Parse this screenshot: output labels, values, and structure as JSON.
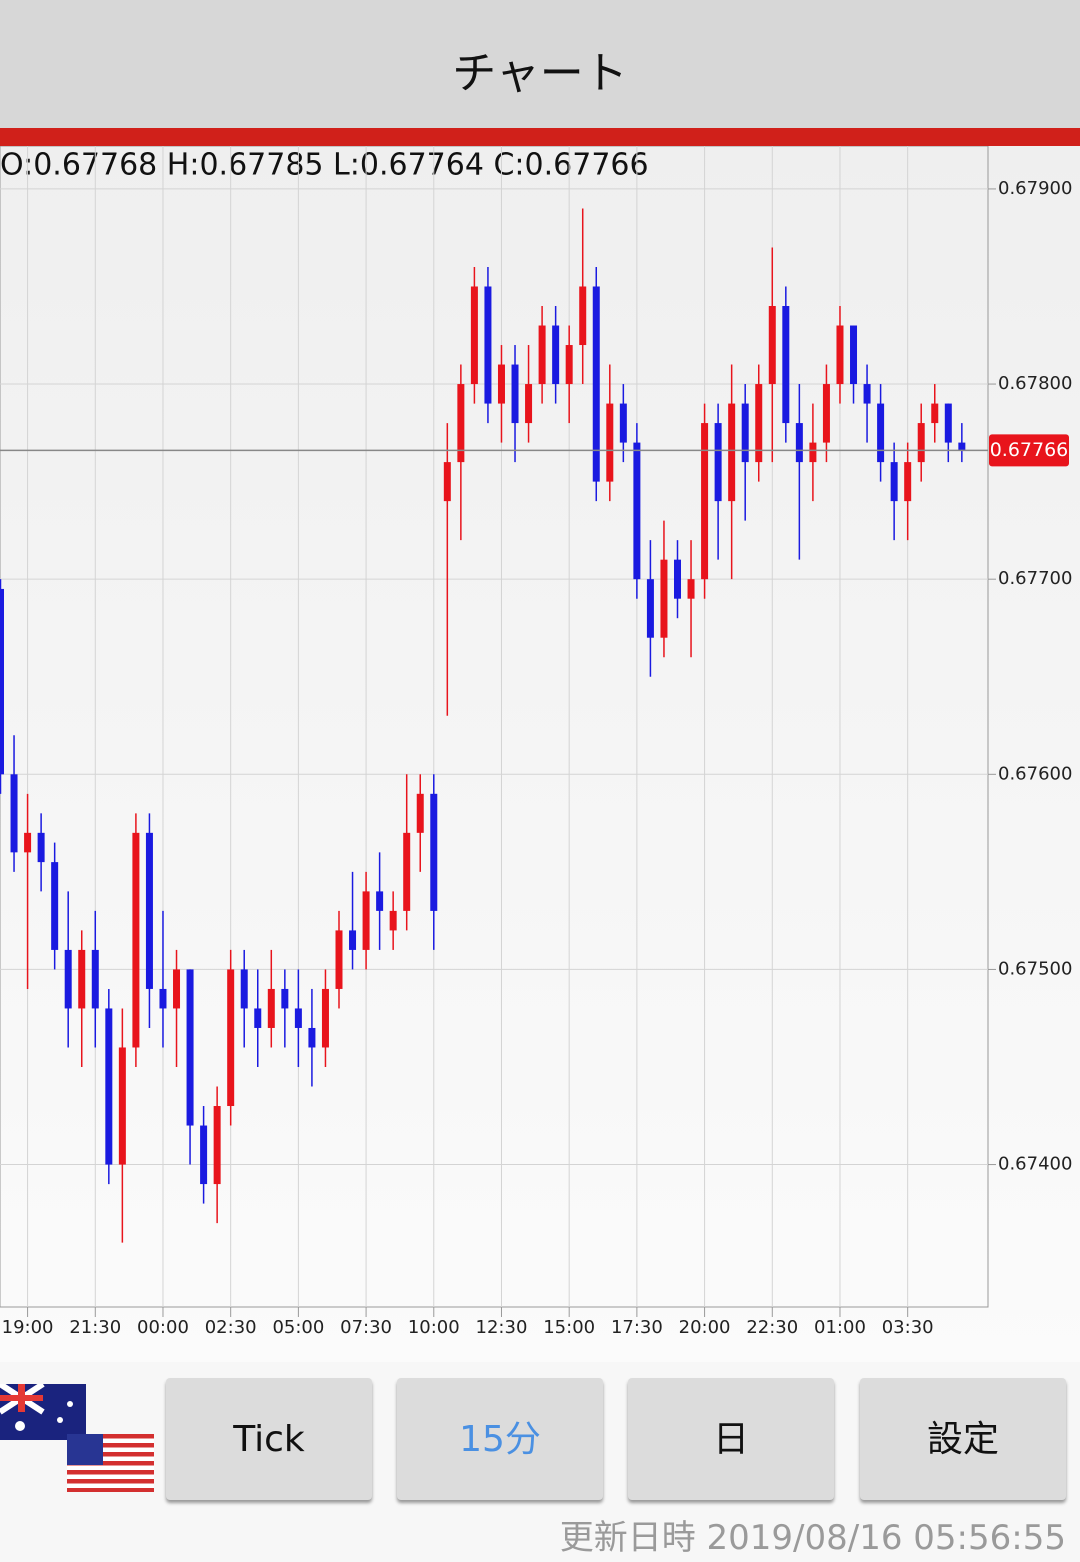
{
  "header": {
    "title": "チャート"
  },
  "chart_data": {
    "type": "candlestick",
    "ohlc_label": "O:0.67768 H:0.67785 L:0.67764 C:0.67766",
    "categories": [
      null,
      null,
      "19:00",
      null,
      null,
      null,
      null,
      "21:30",
      null,
      null,
      null,
      null,
      "00:00",
      null,
      null,
      null,
      null,
      "02:30",
      null,
      null,
      null,
      null,
      "05:00",
      null,
      null,
      null,
      null,
      "07:30",
      null,
      null,
      null,
      null,
      "10:00",
      null,
      null,
      null,
      null,
      "12:30",
      null,
      null,
      null,
      null,
      "15:00",
      null,
      null,
      null,
      null,
      "17:30",
      null,
      null,
      null,
      null,
      "20:00",
      null,
      null,
      null,
      null,
      "22:30",
      null,
      null,
      null,
      null,
      "01:00",
      null,
      null,
      null,
      null,
      "03:30",
      null,
      null,
      null,
      null
    ],
    "open": [
      0.67695,
      0.676,
      0.6756,
      0.6757,
      0.67555,
      0.6751,
      0.6748,
      0.6751,
      0.6748,
      0.674,
      0.6746,
      0.6757,
      0.6749,
      0.6748,
      0.675,
      0.6742,
      0.6739,
      0.6743,
      0.675,
      0.6748,
      0.6747,
      0.6749,
      0.6748,
      0.6747,
      0.6746,
      0.6749,
      0.6752,
      0.6751,
      0.6754,
      0.6752,
      0.6753,
      0.6757,
      0.6759,
      0.6774,
      0.6776,
      0.678,
      0.6785,
      0.6779,
      0.6781,
      0.6778,
      0.678,
      0.6783,
      0.678,
      0.6782,
      0.6785,
      0.6775,
      0.6779,
      0.6777,
      0.677,
      0.6767,
      0.6771,
      0.6769,
      0.677,
      0.6778,
      0.6774,
      0.6779,
      0.6776,
      0.678,
      0.6784,
      0.6778,
      0.6776,
      0.6777,
      0.678,
      0.6783,
      0.678,
      0.6779,
      0.6776,
      0.6774,
      0.6776,
      0.6778,
      0.6779,
      0.6777
    ],
    "high": [
      0.677,
      0.6762,
      0.6759,
      0.6758,
      0.67565,
      0.6754,
      0.6752,
      0.6753,
      0.6749,
      0.6748,
      0.6758,
      0.6758,
      0.6753,
      0.6751,
      0.675,
      0.6743,
      0.6744,
      0.6751,
      0.6751,
      0.675,
      0.6751,
      0.675,
      0.675,
      0.6749,
      0.675,
      0.6753,
      0.6755,
      0.6755,
      0.6756,
      0.6754,
      0.676,
      0.676,
      0.676,
      0.6778,
      0.6781,
      0.6786,
      0.6786,
      0.6782,
      0.6782,
      0.6782,
      0.6784,
      0.6784,
      0.6783,
      0.6789,
      0.6786,
      0.6781,
      0.678,
      0.6778,
      0.6772,
      0.6773,
      0.6772,
      0.6772,
      0.6779,
      0.6779,
      0.6781,
      0.678,
      0.6781,
      0.6787,
      0.6785,
      0.678,
      0.6779,
      0.6781,
      0.6784,
      0.6783,
      0.6781,
      0.678,
      0.6777,
      0.6777,
      0.6779,
      0.678,
      0.6779,
      0.6778
    ],
    "low": [
      0.6759,
      0.6755,
      0.6749,
      0.6754,
      0.675,
      0.6746,
      0.6745,
      0.6746,
      0.6739,
      0.6736,
      0.6745,
      0.6747,
      0.6746,
      0.6745,
      0.674,
      0.6738,
      0.6737,
      0.6742,
      0.6746,
      0.6745,
      0.6746,
      0.6746,
      0.6745,
      0.6744,
      0.6745,
      0.6748,
      0.675,
      0.675,
      0.6751,
      0.6751,
      0.6752,
      0.6755,
      0.6751,
      0.6763,
      0.6772,
      0.6779,
      0.6778,
      0.6777,
      0.6776,
      0.6777,
      0.6779,
      0.6779,
      0.6778,
      0.678,
      0.6774,
      0.6774,
      0.6776,
      0.6769,
      0.6765,
      0.6766,
      0.6768,
      0.6766,
      0.6769,
      0.6771,
      0.677,
      0.6773,
      0.6775,
      0.6776,
      0.6777,
      0.6771,
      0.6774,
      0.6776,
      0.6779,
      0.6779,
      0.6777,
      0.6775,
      0.6772,
      0.6772,
      0.6775,
      0.6777,
      0.6776,
      0.6776
    ],
    "close": [
      0.676,
      0.6756,
      0.6757,
      0.67555,
      0.6751,
      0.6748,
      0.6751,
      0.6748,
      0.674,
      0.6746,
      0.6757,
      0.6749,
      0.6748,
      0.675,
      0.6742,
      0.6739,
      0.6743,
      0.675,
      0.6748,
      0.6747,
      0.6749,
      0.6748,
      0.6747,
      0.6746,
      0.6749,
      0.6752,
      0.6751,
      0.6754,
      0.6753,
      0.6753,
      0.6757,
      0.6759,
      0.6753,
      0.6776,
      0.678,
      0.6785,
      0.6779,
      0.6781,
      0.6778,
      0.678,
      0.6783,
      0.678,
      0.6782,
      0.6785,
      0.6775,
      0.6779,
      0.6777,
      0.677,
      0.6767,
      0.6771,
      0.6769,
      0.677,
      0.6778,
      0.6774,
      0.6779,
      0.6776,
      0.678,
      0.6784,
      0.6778,
      0.6776,
      0.6777,
      0.678,
      0.6783,
      0.678,
      0.6779,
      0.6776,
      0.6774,
      0.6776,
      0.6778,
      0.6779,
      0.6777,
      0.67766
    ],
    "up_color": "#e8141c",
    "down_color": "#1a1ae0",
    "last_price": 0.67766,
    "ylim": [
      0.67327,
      0.67922
    ],
    "yticks": [
      {
        "value": 0.674,
        "label": "0.67400"
      },
      {
        "value": 0.675,
        "label": "0.67500"
      },
      {
        "value": 0.676,
        "label": "0.67600"
      },
      {
        "value": 0.677,
        "label": "0.67700"
      },
      {
        "value": 0.678,
        "label": "0.67800"
      },
      {
        "value": 0.679,
        "label": "0.67900"
      }
    ],
    "grid": true
  },
  "buttons": [
    "Tick",
    "15分",
    "日",
    "設定"
  ],
  "footer": {
    "updated": "更新日時 2019/08/16 05:56:55"
  }
}
